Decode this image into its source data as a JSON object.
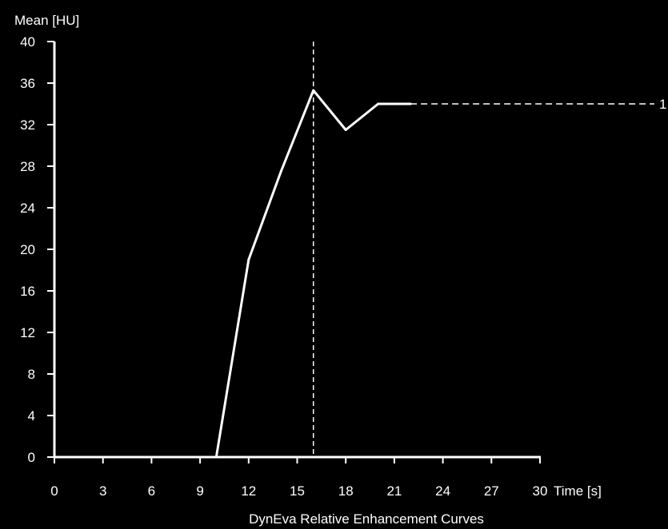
{
  "chart_data": {
    "type": "line",
    "title": "DynEva Relative Enhancement Curves",
    "xlabel": "Time [s]",
    "ylabel": "Mean [HU]",
    "xlim": [
      0,
      30
    ],
    "ylim": [
      0,
      40
    ],
    "x_ticks": [
      0,
      3,
      6,
      9,
      12,
      15,
      18,
      21,
      24,
      27,
      30
    ],
    "y_ticks": [
      0,
      4,
      8,
      12,
      16,
      20,
      24,
      28,
      32,
      36,
      40
    ],
    "grid": false,
    "colors": {
      "background": "#000000",
      "foreground": "#ffffff"
    },
    "series": [
      {
        "label": "1",
        "x": [
          10,
          12,
          14,
          16,
          18,
          20,
          22
        ],
        "y": [
          0,
          19,
          27.5,
          35.3,
          31.5,
          34,
          34
        ],
        "extension": {
          "style": "dashed",
          "x_end": 30,
          "y": 34
        }
      }
    ],
    "markers": [
      {
        "type": "vertical-dashed-line",
        "x": 16
      }
    ]
  }
}
